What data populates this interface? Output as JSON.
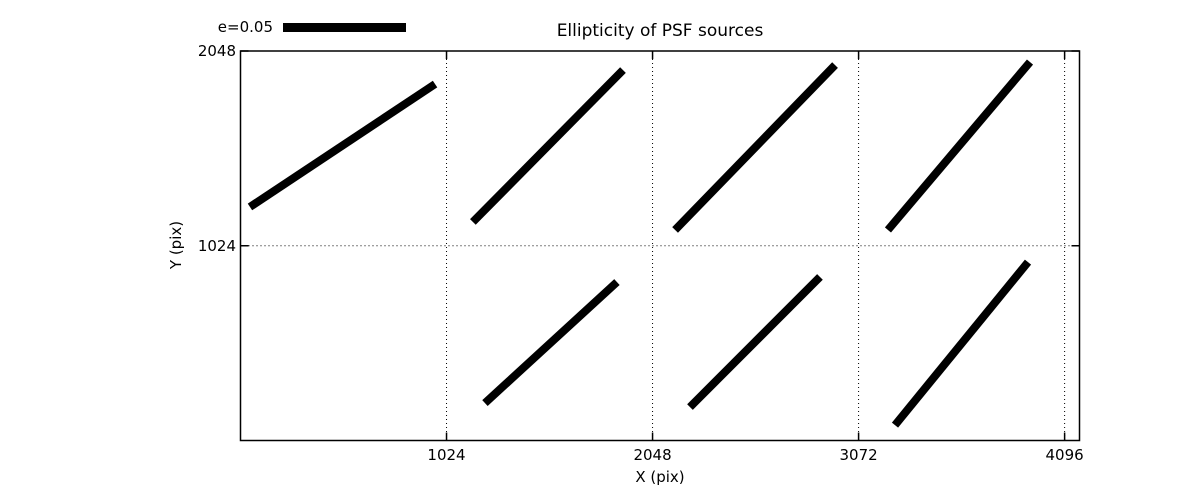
{
  "legend": {
    "label": "e=0.05",
    "value": 0.05,
    "color": "#000000"
  },
  "chart_data": {
    "type": "line",
    "subtype": "psf-ellipticity-whiskers",
    "title": "Ellipticity of PSF sources",
    "xlabel": "X (pix)",
    "ylabel": "Y (pix)",
    "xlim": [
      0,
      4170
    ],
    "ylim": [
      0,
      2048
    ],
    "xticks": [
      1024,
      2048,
      3072,
      4096
    ],
    "yticks": [
      1024,
      2048
    ],
    "grid": {
      "style": "dotted",
      "x_at": [
        1024,
        2048,
        3072,
        4096
      ],
      "y_at": [
        1024
      ]
    },
    "legend_label": "e=0.05",
    "stroke_color": "#000000",
    "stroke_width_px": 8,
    "background": "#ffffff",
    "segments": [
      {
        "name": "whisker-1",
        "x1": 47,
        "y1": 1228,
        "x2": 967,
        "y2": 1874
      },
      {
        "name": "whisker-2",
        "x1": 1155,
        "y1": 1149,
        "x2": 1901,
        "y2": 1948
      },
      {
        "name": "whisker-3",
        "x1": 2160,
        "y1": 1107,
        "x2": 2955,
        "y2": 1974
      },
      {
        "name": "whisker-4",
        "x1": 3218,
        "y1": 1107,
        "x2": 3924,
        "y2": 1990
      },
      {
        "name": "whisker-5",
        "x1": 1215,
        "y1": 197,
        "x2": 1871,
        "y2": 833
      },
      {
        "name": "whisker-6",
        "x1": 2234,
        "y1": 176,
        "x2": 2880,
        "y2": 860
      },
      {
        "name": "whisker-7",
        "x1": 3253,
        "y1": 81,
        "x2": 3914,
        "y2": 938
      }
    ]
  }
}
